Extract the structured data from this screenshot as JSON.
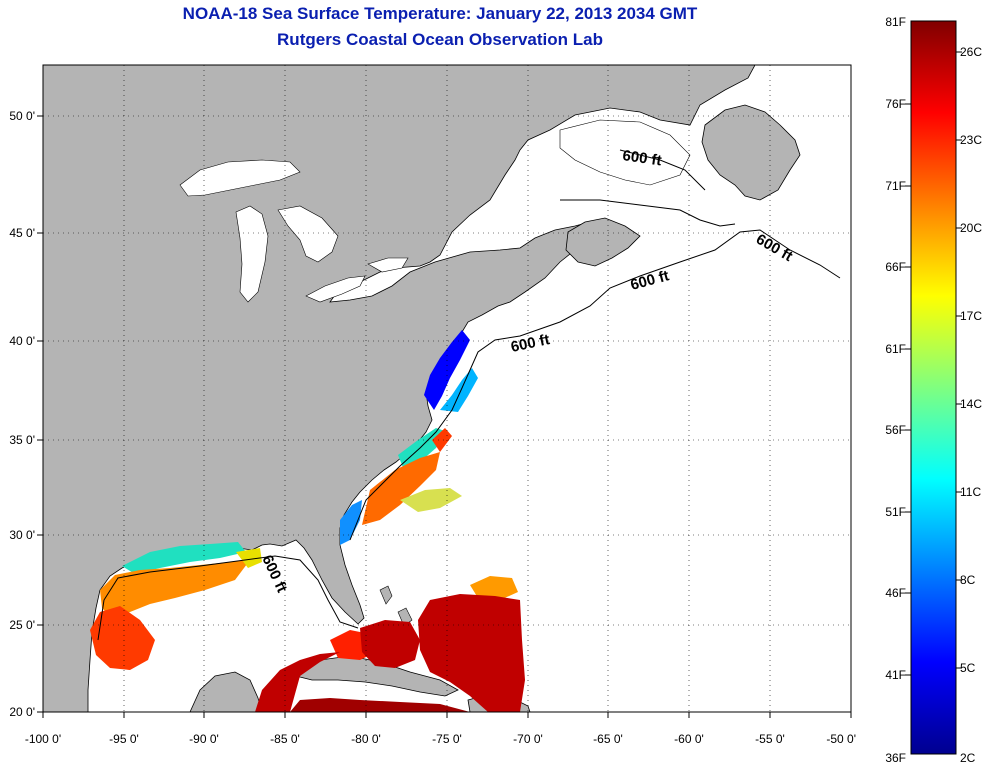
{
  "title": "NOAA-18 Sea Surface Temperature:  January 22, 2013 2034 GMT",
  "subtitle": "Rutgers Coastal Ocean Observation Lab",
  "map": {
    "lon_range": [
      -100,
      -50
    ],
    "lat_range": [
      20,
      52.5
    ],
    "grid": "dotted",
    "land_color": "#b4b4b4",
    "water_color": "#ffffff",
    "lon_ticks": [
      "-100 0'",
      "-95 0'",
      "-90 0'",
      "-85 0'",
      "-80 0'",
      "-75 0'",
      "-70 0'",
      "-65 0'",
      "-60 0'",
      "-55 0'",
      "-50 0'"
    ],
    "lat_ticks": [
      "50 0'",
      "45 0'",
      "40 0'",
      "35 0'",
      "30 0'",
      "25 0'",
      "20 0'"
    ],
    "isobath_labels": [
      "600 ft",
      "600 ft",
      "600 ft",
      "600 ft",
      "600 ft"
    ]
  },
  "colorbar": {
    "colormap": "jet",
    "f_labels": [
      "81F",
      "76F",
      "71F",
      "66F",
      "61F",
      "56F",
      "51F",
      "46F",
      "41F",
      "36F"
    ],
    "c_labels": [
      "26C",
      "23C",
      "20C",
      "17C",
      "14C",
      "11C",
      "8C",
      "5C",
      "2C"
    ]
  }
}
